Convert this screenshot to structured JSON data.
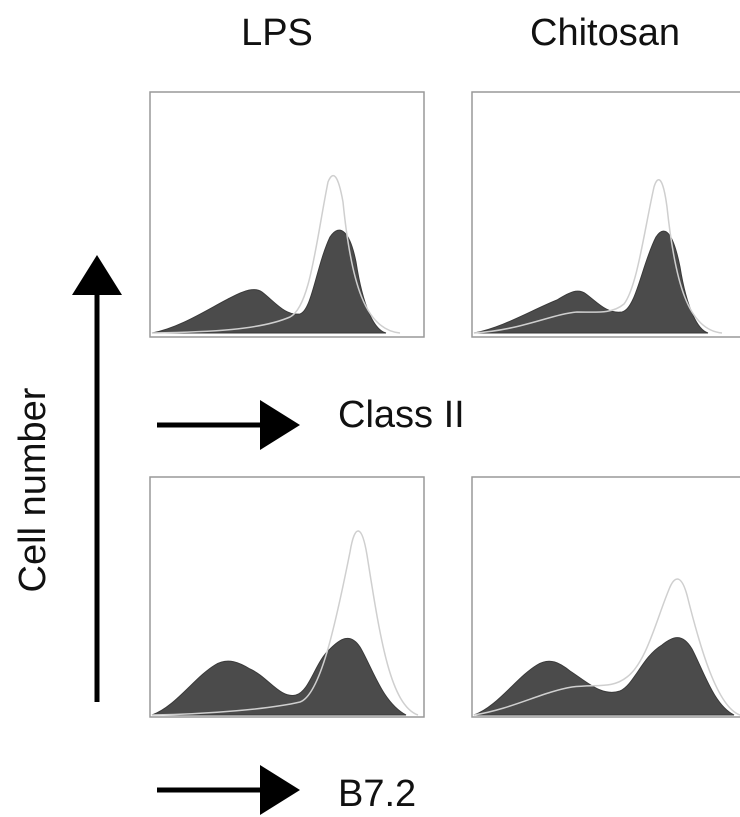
{
  "columns": [
    "LPS",
    "Chitosan"
  ],
  "y_axis_label": "Cell number",
  "rows": [
    {
      "x_axis_label": "Class II"
    },
    {
      "x_axis_label": "B7.2"
    }
  ]
}
